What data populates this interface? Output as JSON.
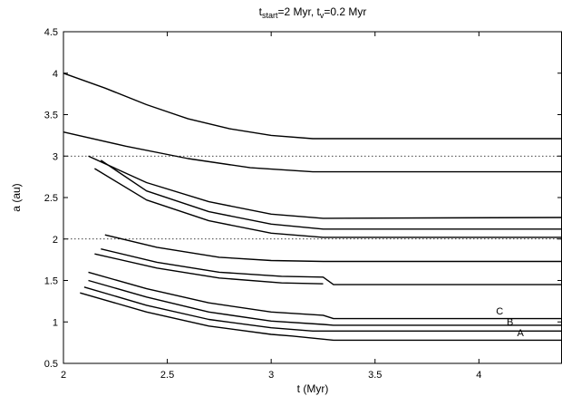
{
  "chart_data": {
    "type": "line",
    "title": {
      "t_main": "t",
      "t_sub": "start",
      "eq1": "=2 Myr, t",
      "v_sub": "v",
      "eq2": "=0.2 Myr"
    },
    "xlabel": "t (Myr)",
    "ylabel": "a (au)",
    "xlim": [
      2,
      4.4
    ],
    "ylim": [
      0.5,
      4.5
    ],
    "xticks": [
      2,
      2.5,
      3,
      3.5,
      4
    ],
    "yticks": [
      0.5,
      1,
      1.5,
      2,
      2.5,
      3,
      3.5,
      4,
      4.5
    ],
    "grid": false,
    "reference_lines": [
      {
        "y": 3.0,
        "style": "dotted"
      },
      {
        "y": 2.0,
        "style": "dotted"
      }
    ],
    "series": [
      {
        "x": [
          2.0,
          2.2,
          2.4,
          2.6,
          2.8,
          3.0,
          3.2,
          3.3,
          4.4
        ],
        "y": [
          4.0,
          3.82,
          3.62,
          3.45,
          3.33,
          3.25,
          3.21,
          3.21,
          3.21
        ]
      },
      {
        "x": [
          2.0,
          2.3,
          2.6,
          2.9,
          3.2,
          3.3,
          4.4
        ],
        "y": [
          3.29,
          3.12,
          2.97,
          2.86,
          2.81,
          2.81,
          2.81
        ]
      },
      {
        "x": [
          2.12,
          2.4,
          2.7,
          3.0,
          3.25,
          4.4
        ],
        "y": [
          3.0,
          2.68,
          2.45,
          2.3,
          2.25,
          2.26
        ]
      },
      {
        "x": [
          2.18,
          2.4,
          2.7,
          3.0,
          3.25,
          4.4
        ],
        "y": [
          2.95,
          2.58,
          2.33,
          2.18,
          2.12,
          2.12
        ]
      },
      {
        "x": [
          2.15,
          2.4,
          2.7,
          3.0,
          3.25,
          4.4
        ],
        "y": [
          2.85,
          2.47,
          2.22,
          2.07,
          2.02,
          2.02
        ]
      },
      {
        "x": [
          2.2,
          2.45,
          2.75,
          3.0,
          3.25,
          3.3,
          4.4
        ],
        "y": [
          2.05,
          1.9,
          1.78,
          1.74,
          1.73,
          1.73,
          1.73
        ]
      },
      {
        "x": [
          2.18,
          2.45,
          2.75,
          3.05,
          3.25,
          3.3,
          4.4
        ],
        "y": [
          1.88,
          1.72,
          1.6,
          1.55,
          1.54,
          1.45,
          1.45
        ]
      },
      {
        "x": [
          2.15,
          2.45,
          2.75,
          3.05,
          3.25
        ],
        "y": [
          1.82,
          1.65,
          1.53,
          1.47,
          1.46
        ]
      },
      {
        "x": [
          2.12,
          2.4,
          2.7,
          3.0,
          3.25,
          3.3,
          4.4
        ],
        "y": [
          1.6,
          1.4,
          1.23,
          1.12,
          1.08,
          1.04,
          1.04
        ]
      },
      {
        "x": [
          2.12,
          2.4,
          2.7,
          3.0,
          3.25,
          3.3,
          4.4
        ],
        "y": [
          1.5,
          1.3,
          1.12,
          1.01,
          0.97,
          0.96,
          0.96
        ]
      },
      {
        "x": [
          2.1,
          2.4,
          2.7,
          3.0,
          3.2,
          3.3,
          3.8,
          4.4
        ],
        "y": [
          1.42,
          1.2,
          1.03,
          0.93,
          0.89,
          0.89,
          0.89,
          0.89
        ]
      },
      {
        "x": [
          2.08,
          2.4,
          2.7,
          3.0,
          3.1,
          3.3,
          4.4
        ],
        "y": [
          1.35,
          1.12,
          0.95,
          0.85,
          0.83,
          0.78,
          0.78
        ]
      }
    ],
    "annotations": [
      {
        "text": "C",
        "x": 4.1,
        "y": 1.09
      },
      {
        "text": "B",
        "x": 4.15,
        "y": 0.96
      },
      {
        "text": "A",
        "x": 4.2,
        "y": 0.83
      }
    ]
  }
}
